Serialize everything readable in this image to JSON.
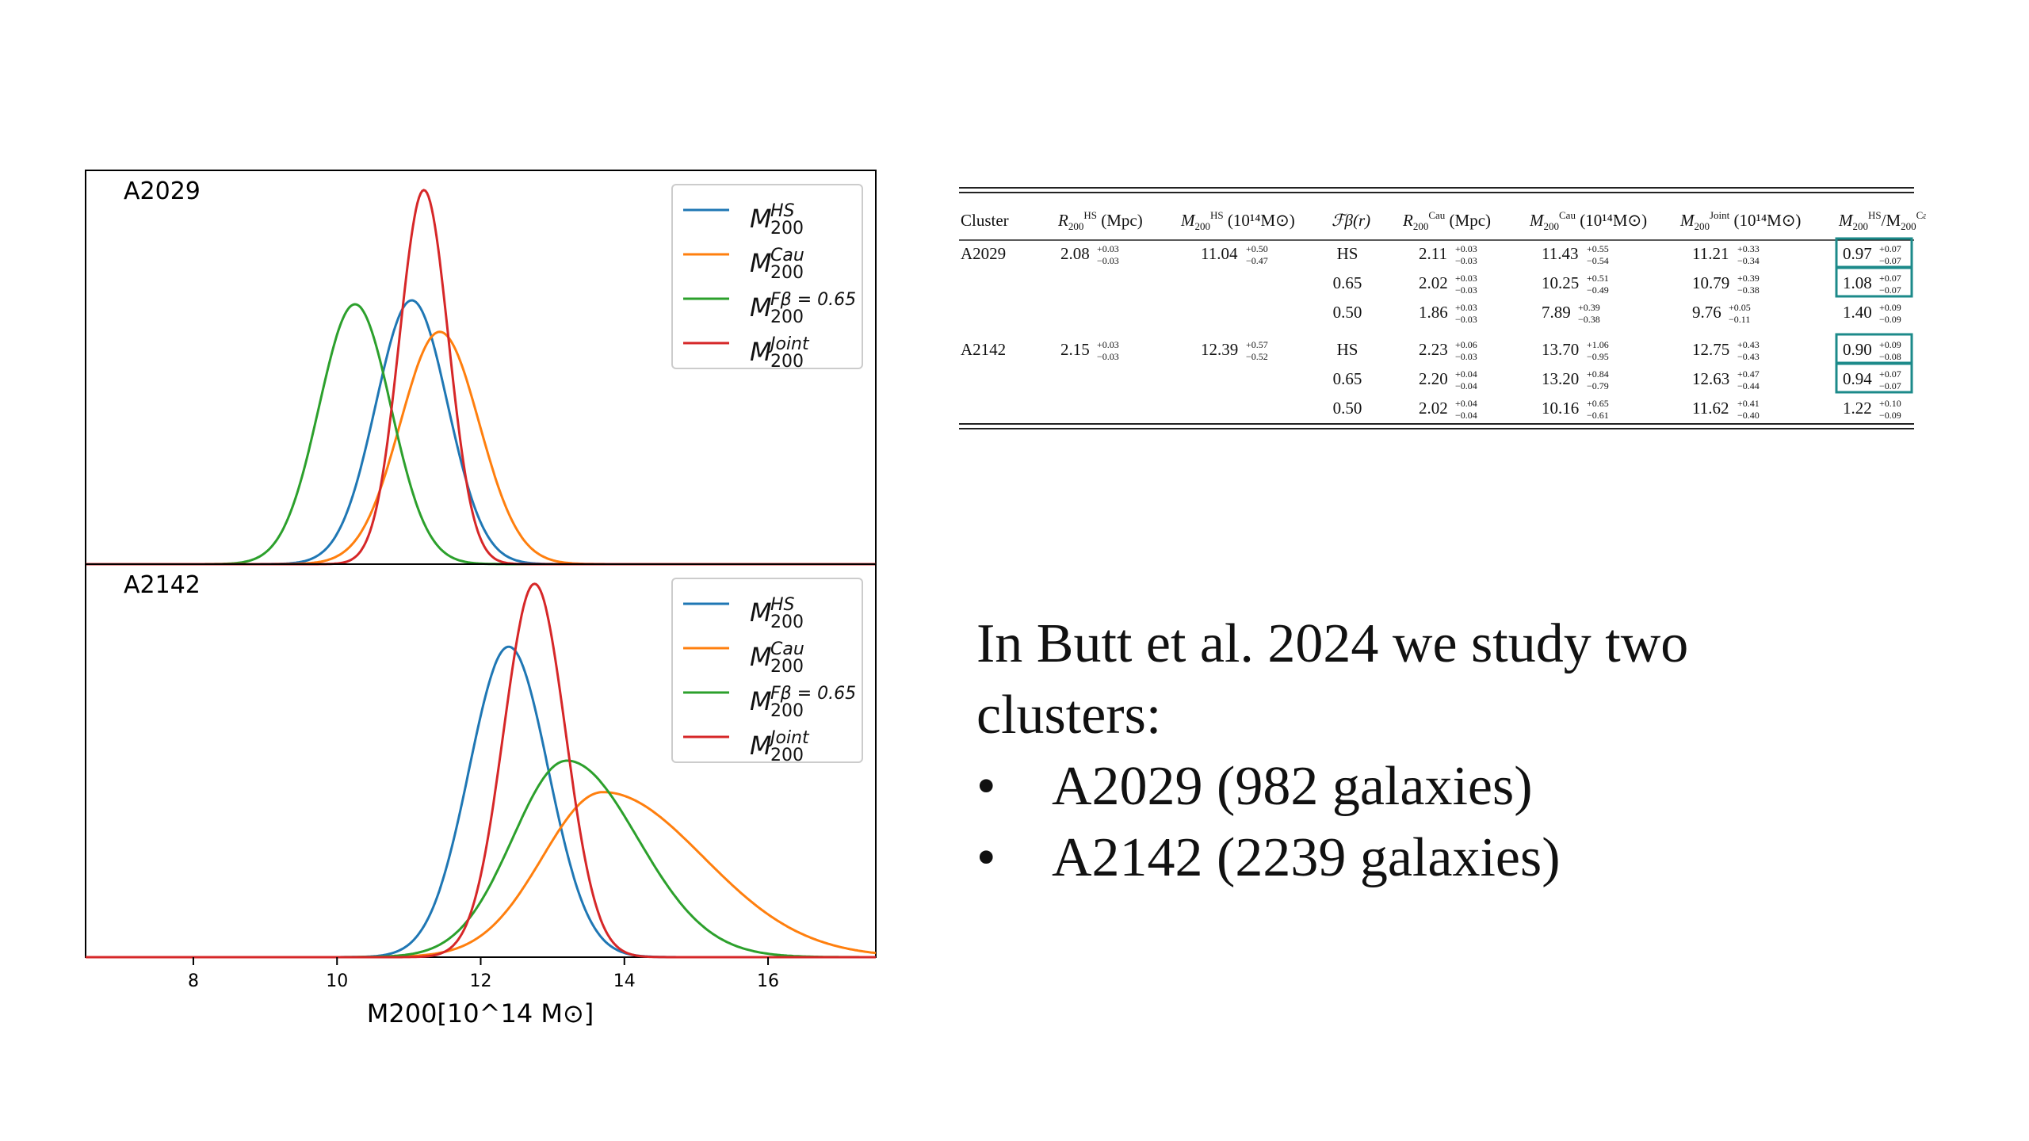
{
  "colors": {
    "hs": "#1f77b4",
    "cau": "#ff7f0e",
    "fbeta": "#2ca02c",
    "joint": "#d62728",
    "box": "#1c8a8a"
  },
  "chart_data": {
    "type": "line",
    "xlabel": "M200[10^14 M⊙]",
    "xlim": [
      6.5,
      17.5
    ],
    "xticks": [
      8,
      10,
      12,
      14,
      16
    ],
    "legend_position": "top-right",
    "series_legend": [
      {
        "key": "hs",
        "base": "M",
        "sup": "HS",
        "sub": "200"
      },
      {
        "key": "cau",
        "base": "M",
        "sup": "Cau",
        "sub": "200"
      },
      {
        "key": "fbeta",
        "base": "M",
        "sup": "Fβ = 0.65",
        "sub": "200"
      },
      {
        "key": "joint",
        "base": "M",
        "sup": "Joint",
        "sub": "200"
      }
    ],
    "panels": [
      {
        "title": "A2029",
        "series": [
          {
            "key": "hs",
            "peak_x": 11.04,
            "peak_rel": 0.67,
            "sigma": 0.5,
            "skew": 0.0
          },
          {
            "key": "cau",
            "peak_x": 11.43,
            "peak_rel": 0.59,
            "sigma": 0.55,
            "skew": 0.0
          },
          {
            "key": "fbeta",
            "peak_x": 10.25,
            "peak_rel": 0.66,
            "sigma": 0.5,
            "skew": 0.0
          },
          {
            "key": "joint",
            "peak_x": 11.21,
            "peak_rel": 0.95,
            "sigma": 0.34,
            "skew": 0.0
          }
        ]
      },
      {
        "title": "A2142",
        "series": [
          {
            "key": "hs",
            "peak_x": 12.39,
            "peak_rel": 0.79,
            "sigma": 0.55,
            "skew": 0.0
          },
          {
            "key": "cau",
            "peak_x": 13.7,
            "peak_rel": 0.42,
            "sigma": 1.0,
            "skew": 0.4
          },
          {
            "key": "fbeta",
            "peak_x": 13.2,
            "peak_rel": 0.5,
            "sigma": 0.82,
            "skew": 0.2
          },
          {
            "key": "joint",
            "peak_x": 12.75,
            "peak_rel": 0.95,
            "sigma": 0.43,
            "skew": 0.0
          }
        ]
      }
    ]
  },
  "table": {
    "headers": [
      {
        "base": "Cluster"
      },
      {
        "base": "R",
        "sup": "HS",
        "sub": "200",
        "tail": " (Mpc)"
      },
      {
        "base": "M",
        "sup": "HS",
        "sub": "200",
        "tail": " (10¹⁴M⊙)"
      },
      {
        "base": "ℱβ(r)"
      },
      {
        "base": "R",
        "sup": "Cau",
        "sub": "200",
        "tail": " (Mpc)"
      },
      {
        "base": "M",
        "sup": "Cau",
        "sub": "200",
        "tail": " (10¹⁴M⊙)"
      },
      {
        "base": "M",
        "sup": "Joint",
        "sub": "200",
        "tail": " (10¹⁴M⊙)"
      },
      {
        "base": "M",
        "sup": "HS",
        "sub": "200",
        "tail": "/M",
        "sup2": "Cau",
        "sub2": "200"
      }
    ],
    "rows": [
      {
        "cluster": "A2029",
        "r_hs": [
          "2.08",
          "+0.03",
          "−0.03"
        ],
        "m_hs": [
          "11.04",
          "+0.50",
          "−0.47"
        ],
        "f": "HS",
        "r_cau": [
          "2.11",
          "+0.03",
          "−0.03"
        ],
        "m_cau": [
          "11.43",
          "+0.55",
          "−0.54"
        ],
        "m_joint": [
          "11.21",
          "+0.33",
          "−0.34"
        ],
        "ratio": [
          "0.97",
          "+0.07",
          "−0.07"
        ],
        "boxed": true
      },
      {
        "cluster": "",
        "r_hs": null,
        "m_hs": null,
        "f": "0.65",
        "r_cau": [
          "2.02",
          "+0.03",
          "−0.03"
        ],
        "m_cau": [
          "10.25",
          "+0.51",
          "−0.49"
        ],
        "m_joint": [
          "10.79",
          "+0.39",
          "−0.38"
        ],
        "ratio": [
          "1.08",
          "+0.07",
          "−0.07"
        ],
        "boxed": true
      },
      {
        "cluster": "",
        "r_hs": null,
        "m_hs": null,
        "f": "0.50",
        "r_cau": [
          "1.86",
          "+0.03",
          "−0.03"
        ],
        "m_cau": [
          "7.89",
          "+0.39",
          "−0.38"
        ],
        "m_joint": [
          "9.76",
          "+0.05",
          "−0.11"
        ],
        "ratio": [
          "1.40",
          "+0.09",
          "−0.09"
        ],
        "boxed": false
      },
      {
        "cluster": "A2142",
        "r_hs": [
          "2.15",
          "+0.03",
          "−0.03"
        ],
        "m_hs": [
          "12.39",
          "+0.57",
          "−0.52"
        ],
        "f": "HS",
        "r_cau": [
          "2.23",
          "+0.06",
          "−0.03"
        ],
        "m_cau": [
          "13.70",
          "+1.06",
          "−0.95"
        ],
        "m_joint": [
          "12.75",
          "+0.43",
          "−0.43"
        ],
        "ratio": [
          "0.90",
          "+0.09",
          "−0.08"
        ],
        "boxed": true
      },
      {
        "cluster": "",
        "r_hs": null,
        "m_hs": null,
        "f": "0.65",
        "r_cau": [
          "2.20",
          "+0.04",
          "−0.04"
        ],
        "m_cau": [
          "13.20",
          "+0.84",
          "−0.79"
        ],
        "m_joint": [
          "12.63",
          "+0.47",
          "−0.44"
        ],
        "ratio": [
          "0.94",
          "+0.07",
          "−0.07"
        ],
        "boxed": true
      },
      {
        "cluster": "",
        "r_hs": null,
        "m_hs": null,
        "f": "0.50",
        "r_cau": [
          "2.02",
          "+0.04",
          "−0.04"
        ],
        "m_cau": [
          "10.16",
          "+0.65",
          "−0.61"
        ],
        "m_joint": [
          "11.62",
          "+0.41",
          "−0.40"
        ],
        "ratio": [
          "1.22",
          "+0.10",
          "−0.09"
        ],
        "boxed": false
      }
    ]
  },
  "text": {
    "intro": "In Butt et al. 2024 we study two clusters:",
    "bullet_glyph": "•",
    "bullets": [
      "A2029 (982 galaxies)",
      "A2142 (2239 galaxies)"
    ]
  }
}
